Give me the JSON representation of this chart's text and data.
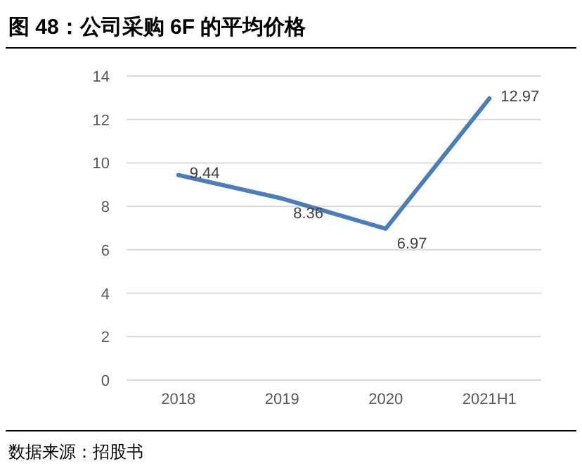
{
  "chart_data": {
    "type": "line",
    "title": "图 48：公司采购 6F 的平均价格",
    "categories": [
      "2018",
      "2019",
      "2020",
      "2021H1"
    ],
    "series": [
      {
        "color": "#4a7ebb",
        "values": [
          9.44,
          8.36,
          6.97,
          12.97
        ]
      }
    ],
    "ylim": [
      0,
      14
    ],
    "yticks": [
      0,
      2,
      4,
      6,
      8,
      10,
      12,
      14
    ],
    "grid": "y",
    "data_labels": true,
    "marker": "none",
    "line_style": "solid",
    "annotations": [
      "数据来源：招股书"
    ]
  }
}
